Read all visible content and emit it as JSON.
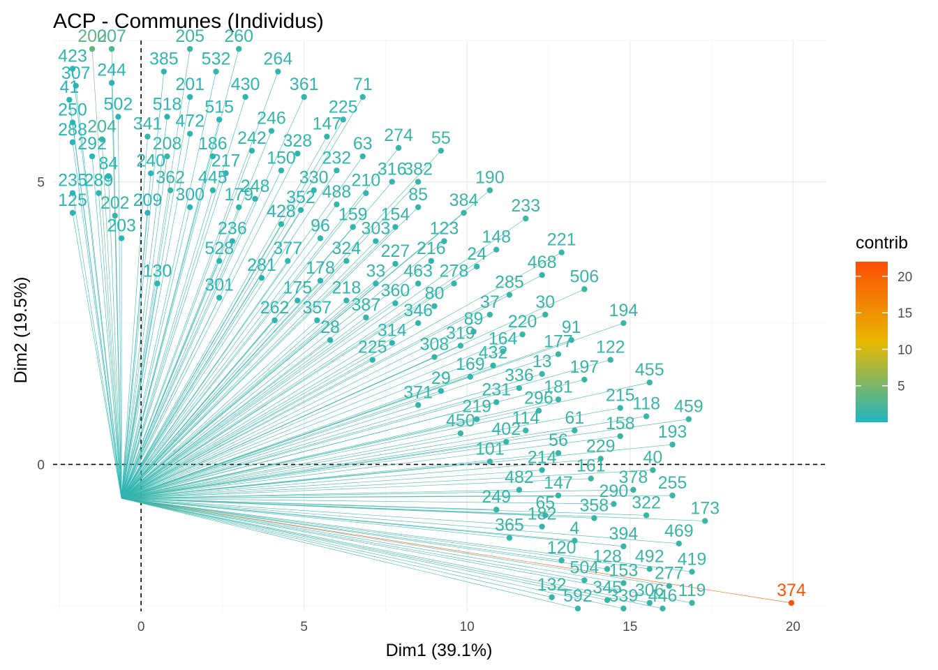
{
  "chart_data": {
    "type": "scatter",
    "title": "ACP - Communes (Individus)",
    "xlabel": "Dim1 (39.1%)",
    "ylabel": "Dim2 (19.5%)",
    "xlim": [
      -2.7,
      21
    ],
    "ylim": [
      -2.6,
      7.5
    ],
    "xticks": [
      0,
      5,
      10,
      15,
      20
    ],
    "yticks": [
      0,
      5
    ],
    "grid": true,
    "reference_lines": [
      {
        "axis": "x",
        "value": 0
      },
      {
        "axis": "y",
        "value": 0
      }
    ],
    "legend": {
      "title": "contrib",
      "ticks": [
        5,
        10,
        15,
        20
      ],
      "range": [
        0,
        22
      ],
      "position": "right"
    },
    "colors": {
      "low": "#1fb5c1",
      "mid": "#e8b800",
      "high": "#fc4e07"
    },
    "points": [
      {
        "label": "374",
        "x": 19.95,
        "y": -2.45,
        "contrib": 21.5
      },
      {
        "label": "200",
        "x": -1.5,
        "y": 7.35,
        "contrib": 3.8
      },
      {
        "label": "207",
        "x": -0.9,
        "y": 7.35,
        "contrib": 2.4
      },
      {
        "label": "205",
        "x": 1.5,
        "y": 7.35,
        "contrib": 1.6
      },
      {
        "label": "260",
        "x": 3.0,
        "y": 7.35,
        "contrib": 1.2
      },
      {
        "label": "423",
        "x": -2.1,
        "y": 7.0,
        "contrib": 0.8
      },
      {
        "label": "385",
        "x": 0.7,
        "y": 6.95,
        "contrib": 0.8
      },
      {
        "label": "532",
        "x": 2.3,
        "y": 6.95,
        "contrib": 0.9
      },
      {
        "label": "264",
        "x": 4.2,
        "y": 6.95,
        "contrib": 1.0
      },
      {
        "label": "307",
        "x": -2.0,
        "y": 6.7,
        "contrib": 0.7
      },
      {
        "label": "244",
        "x": -0.9,
        "y": 6.75,
        "contrib": 0.7
      },
      {
        "label": "71",
        "x": 6.8,
        "y": 6.5,
        "contrib": 1.2
      },
      {
        "label": "41",
        "x": -2.2,
        "y": 6.45,
        "contrib": 0.6
      },
      {
        "label": "201",
        "x": 1.5,
        "y": 6.5,
        "contrib": 0.8
      },
      {
        "label": "430",
        "x": 3.2,
        "y": 6.5,
        "contrib": 0.9
      },
      {
        "label": "361",
        "x": 5.0,
        "y": 6.5,
        "contrib": 1.0
      },
      {
        "label": "502",
        "x": -0.7,
        "y": 6.15,
        "contrib": 0.6
      },
      {
        "label": "518",
        "x": 0.8,
        "y": 6.15,
        "contrib": 0.7
      },
      {
        "label": "515",
        "x": 2.4,
        "y": 6.1,
        "contrib": 0.8
      },
      {
        "label": "225",
        "x": 6.2,
        "y": 6.1,
        "contrib": 1.1
      },
      {
        "label": "250",
        "x": -2.1,
        "y": 6.05,
        "contrib": 0.6
      },
      {
        "label": "472",
        "x": 1.5,
        "y": 5.85,
        "contrib": 0.8
      },
      {
        "label": "246",
        "x": 4.0,
        "y": 5.9,
        "contrib": 1.0
      },
      {
        "label": "147",
        "x": 5.7,
        "y": 5.8,
        "contrib": 1.1
      },
      {
        "label": "204",
        "x": -1.2,
        "y": 5.75,
        "contrib": 1.8
      },
      {
        "label": "341",
        "x": 0.2,
        "y": 5.8,
        "contrib": 1.2
      },
      {
        "label": "274",
        "x": 7.9,
        "y": 5.6,
        "contrib": 1.4
      },
      {
        "label": "288",
        "x": -2.1,
        "y": 5.7,
        "contrib": 0.6
      },
      {
        "label": "292",
        "x": -1.5,
        "y": 5.45,
        "contrib": 0.6
      },
      {
        "label": "208",
        "x": 0.8,
        "y": 5.45,
        "contrib": 1.4
      },
      {
        "label": "186",
        "x": 2.2,
        "y": 5.45,
        "contrib": 0.8
      },
      {
        "label": "242",
        "x": 3.4,
        "y": 5.55,
        "contrib": 0.9
      },
      {
        "label": "328",
        "x": 4.8,
        "y": 5.5,
        "contrib": 1.0
      },
      {
        "label": "63",
        "x": 6.8,
        "y": 5.45,
        "contrib": 1.1
      },
      {
        "label": "55",
        "x": 9.2,
        "y": 5.55,
        "contrib": 1.5
      },
      {
        "label": "232",
        "x": 6.0,
        "y": 5.2,
        "contrib": 1.1
      },
      {
        "label": "84",
        "x": -1.0,
        "y": 5.1,
        "contrib": 0.6
      },
      {
        "label": "240",
        "x": 0.3,
        "y": 5.15,
        "contrib": 0.7
      },
      {
        "label": "217",
        "x": 2.6,
        "y": 5.15,
        "contrib": 0.8
      },
      {
        "label": "150",
        "x": 4.3,
        "y": 5.2,
        "contrib": 0.9
      },
      {
        "label": "316",
        "x": 7.7,
        "y": 5.0,
        "contrib": 1.2
      },
      {
        "label": "382",
        "x": 8.5,
        "y": 5.0,
        "contrib": 1.3
      },
      {
        "label": "190",
        "x": 10.7,
        "y": 4.85,
        "contrib": 1.5
      },
      {
        "label": "235",
        "x": -2.1,
        "y": 4.8,
        "contrib": 0.6
      },
      {
        "label": "289",
        "x": -1.3,
        "y": 4.8,
        "contrib": 0.6
      },
      {
        "label": "362",
        "x": 0.9,
        "y": 4.85,
        "contrib": 1.4
      },
      {
        "label": "445",
        "x": 2.2,
        "y": 4.85,
        "contrib": 0.8
      },
      {
        "label": "330",
        "x": 5.3,
        "y": 4.85,
        "contrib": 1.0
      },
      {
        "label": "210",
        "x": 6.9,
        "y": 4.8,
        "contrib": 1.1
      },
      {
        "label": "248",
        "x": 3.5,
        "y": 4.7,
        "contrib": 0.9
      },
      {
        "label": "488",
        "x": 6.0,
        "y": 4.6,
        "contrib": 1.0
      },
      {
        "label": "85",
        "x": 8.5,
        "y": 4.55,
        "contrib": 1.2
      },
      {
        "label": "125",
        "x": -2.1,
        "y": 4.45,
        "contrib": 0.6
      },
      {
        "label": "300",
        "x": 1.5,
        "y": 4.55,
        "contrib": 0.7
      },
      {
        "label": "179",
        "x": 3.0,
        "y": 4.55,
        "contrib": 0.8
      },
      {
        "label": "352",
        "x": 4.9,
        "y": 4.5,
        "contrib": 0.9
      },
      {
        "label": "384",
        "x": 9.9,
        "y": 4.45,
        "contrib": 1.4
      },
      {
        "label": "233",
        "x": 11.8,
        "y": 4.35,
        "contrib": 1.5
      },
      {
        "label": "202",
        "x": -0.8,
        "y": 4.4,
        "contrib": 1.6
      },
      {
        "label": "209",
        "x": 0.2,
        "y": 4.45,
        "contrib": 0.7
      },
      {
        "label": "428",
        "x": 4.3,
        "y": 4.25,
        "contrib": 0.9
      },
      {
        "label": "159",
        "x": 6.5,
        "y": 4.2,
        "contrib": 1.0
      },
      {
        "label": "154",
        "x": 7.8,
        "y": 4.2,
        "contrib": 1.1
      },
      {
        "label": "203",
        "x": -0.6,
        "y": 4.0,
        "contrib": 0.7
      },
      {
        "label": "236",
        "x": 2.8,
        "y": 3.95,
        "contrib": 0.8
      },
      {
        "label": "96",
        "x": 5.5,
        "y": 4.0,
        "contrib": 0.9
      },
      {
        "label": "303",
        "x": 7.2,
        "y": 3.95,
        "contrib": 1.0
      },
      {
        "label": "123",
        "x": 9.3,
        "y": 3.95,
        "contrib": 1.2
      },
      {
        "label": "148",
        "x": 10.9,
        "y": 3.8,
        "contrib": 1.3
      },
      {
        "label": "221",
        "x": 12.9,
        "y": 3.75,
        "contrib": 1.5
      },
      {
        "label": "528",
        "x": 2.4,
        "y": 3.6,
        "contrib": 0.8
      },
      {
        "label": "377",
        "x": 4.5,
        "y": 3.6,
        "contrib": 0.9
      },
      {
        "label": "324",
        "x": 6.3,
        "y": 3.6,
        "contrib": 1.0
      },
      {
        "label": "227",
        "x": 7.8,
        "y": 3.55,
        "contrib": 1.1
      },
      {
        "label": "216",
        "x": 8.9,
        "y": 3.6,
        "contrib": 1.2
      },
      {
        "label": "24",
        "x": 10.3,
        "y": 3.5,
        "contrib": 1.2
      },
      {
        "label": "468",
        "x": 12.3,
        "y": 3.35,
        "contrib": 1.4
      },
      {
        "label": "130",
        "x": 0.5,
        "y": 3.2,
        "contrib": 0.7
      },
      {
        "label": "281",
        "x": 3.7,
        "y": 3.3,
        "contrib": 0.8
      },
      {
        "label": "178",
        "x": 5.5,
        "y": 3.25,
        "contrib": 0.9
      },
      {
        "label": "33",
        "x": 7.2,
        "y": 3.2,
        "contrib": 1.0
      },
      {
        "label": "463",
        "x": 8.5,
        "y": 3.2,
        "contrib": 1.1
      },
      {
        "label": "278",
        "x": 9.6,
        "y": 3.2,
        "contrib": 1.2
      },
      {
        "label": "506",
        "x": 13.6,
        "y": 3.1,
        "contrib": 1.5
      },
      {
        "label": "285",
        "x": 11.3,
        "y": 3.0,
        "contrib": 1.3
      },
      {
        "label": "301",
        "x": 2.4,
        "y": 2.95,
        "contrib": 0.8
      },
      {
        "label": "175",
        "x": 4.8,
        "y": 2.9,
        "contrib": 0.9
      },
      {
        "label": "218",
        "x": 6.3,
        "y": 2.9,
        "contrib": 1.0
      },
      {
        "label": "360",
        "x": 7.8,
        "y": 2.85,
        "contrib": 1.1
      },
      {
        "label": "80",
        "x": 9.0,
        "y": 2.8,
        "contrib": 1.1
      },
      {
        "label": "37",
        "x": 10.7,
        "y": 2.65,
        "contrib": 1.2
      },
      {
        "label": "30",
        "x": 12.4,
        "y": 2.65,
        "contrib": 1.3
      },
      {
        "label": "194",
        "x": 14.8,
        "y": 2.5,
        "contrib": 1.5
      },
      {
        "label": "262",
        "x": 4.1,
        "y": 2.55,
        "contrib": 0.9
      },
      {
        "label": "357",
        "x": 5.4,
        "y": 2.55,
        "contrib": 0.9
      },
      {
        "label": "387",
        "x": 6.9,
        "y": 2.6,
        "contrib": 1.0
      },
      {
        "label": "346",
        "x": 8.5,
        "y": 2.5,
        "contrib": 1.1
      },
      {
        "label": "89",
        "x": 10.2,
        "y": 2.35,
        "contrib": 1.2
      },
      {
        "label": "220",
        "x": 11.7,
        "y": 2.3,
        "contrib": 1.3
      },
      {
        "label": "91",
        "x": 13.2,
        "y": 2.2,
        "contrib": 1.4
      },
      {
        "label": "28",
        "x": 5.8,
        "y": 2.2,
        "contrib": 0.9
      },
      {
        "label": "314",
        "x": 7.7,
        "y": 2.15,
        "contrib": 1.0
      },
      {
        "label": "319",
        "x": 9.8,
        "y": 2.1,
        "contrib": 1.2
      },
      {
        "label": "164",
        "x": 11.1,
        "y": 2.0,
        "contrib": 1.2
      },
      {
        "label": "177",
        "x": 12.8,
        "y": 1.95,
        "contrib": 1.6
      },
      {
        "label": "122",
        "x": 14.4,
        "y": 1.85,
        "contrib": 1.5
      },
      {
        "label": "225",
        "x": 7.1,
        "y": 1.85,
        "contrib": 1.0
      },
      {
        "label": "308",
        "x": 9.0,
        "y": 1.9,
        "contrib": 1.1
      },
      {
        "label": "432",
        "x": 10.8,
        "y": 1.75,
        "contrib": 1.2
      },
      {
        "label": "13",
        "x": 12.3,
        "y": 1.6,
        "contrib": 1.5
      },
      {
        "label": "197",
        "x": 13.6,
        "y": 1.5,
        "contrib": 1.4
      },
      {
        "label": "455",
        "x": 15.6,
        "y": 1.45,
        "contrib": 1.6
      },
      {
        "label": "169",
        "x": 10.1,
        "y": 1.55,
        "contrib": 1.2
      },
      {
        "label": "336",
        "x": 11.6,
        "y": 1.35,
        "contrib": 1.3
      },
      {
        "label": "181",
        "x": 12.8,
        "y": 1.15,
        "contrib": 1.5
      },
      {
        "label": "215",
        "x": 14.7,
        "y": 1.0,
        "contrib": 1.5
      },
      {
        "label": "29",
        "x": 9.2,
        "y": 1.3,
        "contrib": 1.1
      },
      {
        "label": "371",
        "x": 8.5,
        "y": 1.05,
        "contrib": 1.1
      },
      {
        "label": "231",
        "x": 10.9,
        "y": 1.1,
        "contrib": 1.2
      },
      {
        "label": "296",
        "x": 12.2,
        "y": 0.95,
        "contrib": 1.3
      },
      {
        "label": "118",
        "x": 15.5,
        "y": 0.85,
        "contrib": 1.5
      },
      {
        "label": "459",
        "x": 16.8,
        "y": 0.8,
        "contrib": 1.6
      },
      {
        "label": "219",
        "x": 10.3,
        "y": 0.8,
        "contrib": 1.2
      },
      {
        "label": "114",
        "x": 11.8,
        "y": 0.6,
        "contrib": 1.3
      },
      {
        "label": "61",
        "x": 13.3,
        "y": 0.6,
        "contrib": 1.4
      },
      {
        "label": "158",
        "x": 14.7,
        "y": 0.5,
        "contrib": 1.5
      },
      {
        "label": "193",
        "x": 16.3,
        "y": 0.35,
        "contrib": 1.5
      },
      {
        "label": "450",
        "x": 9.8,
        "y": 0.55,
        "contrib": 1.4
      },
      {
        "label": "402",
        "x": 11.2,
        "y": 0.4,
        "contrib": 1.3
      },
      {
        "label": "56",
        "x": 12.8,
        "y": 0.2,
        "contrib": 1.3
      },
      {
        "label": "229",
        "x": 14.1,
        "y": 0.1,
        "contrib": 1.4
      },
      {
        "label": "40",
        "x": 15.7,
        "y": -0.1,
        "contrib": 1.5
      },
      {
        "label": "101",
        "x": 10.7,
        "y": 0.05,
        "contrib": 1.2
      },
      {
        "label": "214",
        "x": 12.3,
        "y": -0.1,
        "contrib": 1.3
      },
      {
        "label": "161",
        "x": 13.8,
        "y": -0.25,
        "contrib": 1.4
      },
      {
        "label": "378",
        "x": 15.1,
        "y": -0.45,
        "contrib": 1.5
      },
      {
        "label": "255",
        "x": 16.3,
        "y": -0.55,
        "contrib": 1.5
      },
      {
        "label": "482",
        "x": 11.6,
        "y": -0.45,
        "contrib": 1.3
      },
      {
        "label": "147",
        "x": 12.8,
        "y": -0.55,
        "contrib": 1.3
      },
      {
        "label": "290",
        "x": 14.5,
        "y": -0.7,
        "contrib": 1.4
      },
      {
        "label": "249",
        "x": 10.9,
        "y": -0.8,
        "contrib": 1.2
      },
      {
        "label": "65",
        "x": 12.4,
        "y": -0.9,
        "contrib": 1.5
      },
      {
        "label": "358",
        "x": 13.9,
        "y": -0.95,
        "contrib": 1.4
      },
      {
        "label": "322",
        "x": 15.5,
        "y": -0.9,
        "contrib": 1.5
      },
      {
        "label": "173",
        "x": 17.3,
        "y": -1.0,
        "contrib": 1.6
      },
      {
        "label": "182",
        "x": 12.3,
        "y": -1.1,
        "contrib": 1.3
      },
      {
        "label": "365",
        "x": 11.3,
        "y": -1.3,
        "contrib": 1.2
      },
      {
        "label": "4",
        "x": 13.3,
        "y": -1.35,
        "contrib": 1.3
      },
      {
        "label": "394",
        "x": 14.8,
        "y": -1.45,
        "contrib": 1.4
      },
      {
        "label": "469",
        "x": 16.5,
        "y": -1.4,
        "contrib": 1.5
      },
      {
        "label": "120",
        "x": 12.9,
        "y": -1.7,
        "contrib": 1.3
      },
      {
        "label": "128",
        "x": 14.3,
        "y": -1.85,
        "contrib": 1.4
      },
      {
        "label": "492",
        "x": 15.6,
        "y": -1.85,
        "contrib": 1.4
      },
      {
        "label": "419",
        "x": 16.9,
        "y": -1.9,
        "contrib": 1.5
      },
      {
        "label": "504",
        "x": 13.6,
        "y": -2.05,
        "contrib": 1.3
      },
      {
        "label": "153",
        "x": 14.8,
        "y": -2.1,
        "contrib": 1.4
      },
      {
        "label": "277",
        "x": 16.2,
        "y": -2.15,
        "contrib": 1.5
      },
      {
        "label": "132",
        "x": 12.6,
        "y": -2.35,
        "contrib": 1.3
      },
      {
        "label": "345",
        "x": 14.3,
        "y": -2.4,
        "contrib": 1.4
      },
      {
        "label": "306",
        "x": 15.6,
        "y": -2.45,
        "contrib": 1.4
      },
      {
        "label": "119",
        "x": 16.9,
        "y": -2.45,
        "contrib": 1.6
      },
      {
        "label": "592",
        "x": 13.4,
        "y": -2.55,
        "contrib": 1.3
      },
      {
        "label": "339",
        "x": 14.8,
        "y": -2.55,
        "contrib": 1.4
      },
      {
        "label": "446",
        "x": 16.0,
        "y": -2.55,
        "contrib": 1.5
      }
    ]
  }
}
